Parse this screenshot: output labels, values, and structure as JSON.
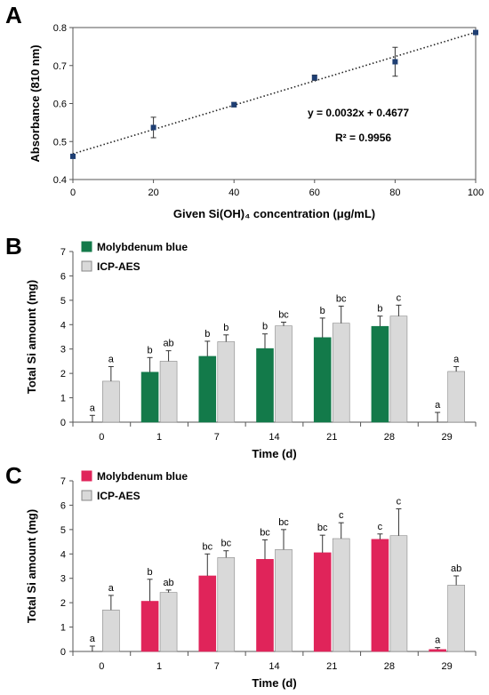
{
  "chart_data": [
    {
      "panel": "A",
      "type": "scatter",
      "xlabel": "Given Si(OH)₄ concentration (μg/mL)",
      "ylabel": "Absorbance (810 nm)",
      "xlim": [
        0,
        100
      ],
      "ylim": [
        0.4,
        0.8
      ],
      "xticks": [
        "0",
        "20",
        "40",
        "60",
        "80",
        "100"
      ],
      "yticks": [
        "0.4",
        "0.5",
        "0.6",
        "0.7",
        "0.8"
      ],
      "x": [
        0,
        20,
        40,
        60,
        80,
        100
      ],
      "y": [
        0.461,
        0.537,
        0.597,
        0.668,
        0.71,
        0.787
      ],
      "yerr": [
        0.004,
        0.027,
        0.006,
        0.007,
        0.038,
        0.004
      ],
      "trendline": {
        "style": "dotted",
        "slope": 0.0032,
        "intercept": 0.4677
      },
      "equation": "y = 0.0032x + 0.4677",
      "r2": "R² = 0.9956",
      "grid": false
    },
    {
      "panel": "B",
      "type": "bar",
      "xlabel": "Time (d)",
      "ylabel": "Total Si amount (mg)",
      "ylim": [
        0,
        7
      ],
      "yticks": [
        "0",
        "1",
        "2",
        "3",
        "4",
        "5",
        "6",
        "7"
      ],
      "categories": [
        "0",
        "1",
        "7",
        "14",
        "21",
        "28",
        "29"
      ],
      "legend_position": "top-left",
      "series": [
        {
          "name": "Molybdenum blue",
          "color": "#137a4a",
          "values": [
            0,
            2.05,
            2.7,
            3.02,
            3.47,
            3.93,
            0
          ],
          "errors": [
            0.28,
            0.6,
            0.62,
            0.6,
            0.8,
            0.42,
            0.4
          ],
          "letters": [
            "a",
            "b",
            "b",
            "b",
            "b",
            "b",
            "a"
          ]
        },
        {
          "name": "ICP-AES",
          "color": "#d9d9d9",
          "values": [
            1.68,
            2.5,
            3.3,
            3.95,
            4.06,
            4.35,
            2.08
          ],
          "errors": [
            0.6,
            0.43,
            0.28,
            0.15,
            0.7,
            0.45,
            0.2
          ],
          "letters": [
            "a",
            "ab",
            "b",
            "bc",
            "bc",
            "c",
            "a"
          ]
        }
      ]
    },
    {
      "panel": "C",
      "type": "bar",
      "xlabel": "Time (d)",
      "ylabel": "Total Si amount (mg)",
      "ylim": [
        0,
        7
      ],
      "yticks": [
        "0",
        "1",
        "2",
        "3",
        "4",
        "5",
        "6",
        "7"
      ],
      "categories": [
        "0",
        "1",
        "7",
        "14",
        "21",
        "28",
        "29"
      ],
      "legend_position": "top-left",
      "series": [
        {
          "name": "Molybdenum blue",
          "color": "#e0245a",
          "values": [
            0,
            2.06,
            3.1,
            3.78,
            4.05,
            4.6,
            0.08
          ],
          "errors": [
            0.22,
            0.9,
            0.9,
            0.8,
            0.72,
            0.22,
            0.08
          ],
          "letters": [
            "a",
            "b",
            "bc",
            "bc",
            "bc",
            "c",
            "a"
          ]
        },
        {
          "name": "ICP-AES",
          "color": "#d9d9d9",
          "values": [
            1.7,
            2.42,
            3.85,
            4.18,
            4.63,
            4.75,
            2.72
          ],
          "errors": [
            0.6,
            0.1,
            0.28,
            0.82,
            0.65,
            1.1,
            0.38
          ],
          "letters": [
            "a",
            "ab",
            "bc",
            "bc",
            "c",
            "c",
            "ab"
          ]
        }
      ]
    }
  ]
}
